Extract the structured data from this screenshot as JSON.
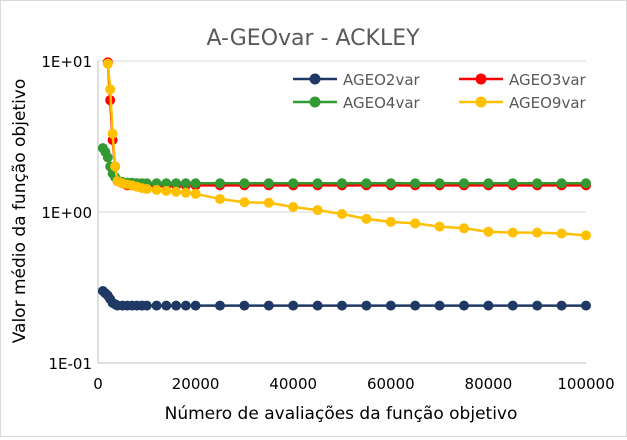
{
  "chart_data": {
    "type": "line",
    "title": "A-GEOvar - ACKLEY",
    "xlabel": "Número de avaliações da função objetivo",
    "ylabel": "Valor médio da função objetivo",
    "xlim": [
      0,
      100000
    ],
    "ylim": [
      0.1,
      10
    ],
    "yscale": "log",
    "x_ticks": [
      0,
      20000,
      40000,
      60000,
      80000,
      100000
    ],
    "x_tick_labels": [
      "0",
      "20000",
      "40000",
      "60000",
      "80000",
      "100000"
    ],
    "y_ticks": [
      0.1,
      1,
      10
    ],
    "y_tick_labels": [
      "1E-01",
      "1E+00",
      "1E+01"
    ],
    "grid": "horizontal",
    "legend": "top-right",
    "series": [
      {
        "name": "AGEO2var",
        "color": "#203864",
        "points": [
          [
            1000,
            0.3
          ],
          [
            1500,
            0.29
          ],
          [
            2000,
            0.28
          ],
          [
            2500,
            0.265
          ],
          [
            3000,
            0.25
          ],
          [
            3500,
            0.245
          ],
          [
            4000,
            0.24
          ],
          [
            5000,
            0.24
          ],
          [
            6000,
            0.24
          ],
          [
            7000,
            0.24
          ],
          [
            8000,
            0.24
          ],
          [
            9000,
            0.24
          ],
          [
            10000,
            0.24
          ],
          [
            12000,
            0.24
          ],
          [
            14000,
            0.24
          ],
          [
            16000,
            0.24
          ],
          [
            18000,
            0.24
          ],
          [
            20000,
            0.24
          ],
          [
            25000,
            0.24
          ],
          [
            30000,
            0.24
          ],
          [
            35000,
            0.24
          ],
          [
            40000,
            0.24
          ],
          [
            45000,
            0.24
          ],
          [
            50000,
            0.24
          ],
          [
            55000,
            0.24
          ],
          [
            60000,
            0.24
          ],
          [
            65000,
            0.24
          ],
          [
            70000,
            0.24
          ],
          [
            75000,
            0.24
          ],
          [
            80000,
            0.24
          ],
          [
            85000,
            0.24
          ],
          [
            90000,
            0.24
          ],
          [
            95000,
            0.24
          ],
          [
            100000,
            0.24
          ]
        ]
      },
      {
        "name": "AGEO3var",
        "color": "#ff0000",
        "points": [
          [
            2000,
            9.8
          ],
          [
            2500,
            5.5
          ],
          [
            3000,
            3.0
          ],
          [
            3500,
            2.0
          ],
          [
            4000,
            1.6
          ],
          [
            5000,
            1.55
          ],
          [
            6000,
            1.5
          ],
          [
            7000,
            1.5
          ],
          [
            8000,
            1.5
          ],
          [
            9000,
            1.5
          ],
          [
            10000,
            1.5
          ],
          [
            12000,
            1.5
          ],
          [
            14000,
            1.5
          ],
          [
            16000,
            1.5
          ],
          [
            18000,
            1.5
          ],
          [
            20000,
            1.5
          ],
          [
            25000,
            1.5
          ],
          [
            30000,
            1.5
          ],
          [
            35000,
            1.5
          ],
          [
            40000,
            1.5
          ],
          [
            45000,
            1.5
          ],
          [
            50000,
            1.5
          ],
          [
            55000,
            1.5
          ],
          [
            60000,
            1.5
          ],
          [
            65000,
            1.5
          ],
          [
            70000,
            1.5
          ],
          [
            75000,
            1.5
          ],
          [
            80000,
            1.5
          ],
          [
            85000,
            1.5
          ],
          [
            90000,
            1.5
          ],
          [
            95000,
            1.5
          ],
          [
            100000,
            1.5
          ]
        ]
      },
      {
        "name": "AGEO4var",
        "color": "#339933",
        "points": [
          [
            1000,
            2.65
          ],
          [
            1500,
            2.5
          ],
          [
            2000,
            2.3
          ],
          [
            2500,
            2.0
          ],
          [
            3000,
            1.8
          ],
          [
            3500,
            1.7
          ],
          [
            4000,
            1.62
          ],
          [
            5000,
            1.58
          ],
          [
            6000,
            1.56
          ],
          [
            7000,
            1.56
          ],
          [
            8000,
            1.55
          ],
          [
            9000,
            1.55
          ],
          [
            10000,
            1.55
          ],
          [
            12000,
            1.55
          ],
          [
            14000,
            1.55
          ],
          [
            16000,
            1.55
          ],
          [
            18000,
            1.55
          ],
          [
            20000,
            1.55
          ],
          [
            25000,
            1.55
          ],
          [
            30000,
            1.55
          ],
          [
            35000,
            1.55
          ],
          [
            40000,
            1.55
          ],
          [
            45000,
            1.55
          ],
          [
            50000,
            1.55
          ],
          [
            55000,
            1.55
          ],
          [
            60000,
            1.55
          ],
          [
            65000,
            1.55
          ],
          [
            70000,
            1.55
          ],
          [
            75000,
            1.55
          ],
          [
            80000,
            1.55
          ],
          [
            85000,
            1.55
          ],
          [
            90000,
            1.55
          ],
          [
            95000,
            1.55
          ],
          [
            100000,
            1.55
          ]
        ]
      },
      {
        "name": "AGEO9var",
        "color": "#ffc000",
        "points": [
          [
            2000,
            9.6
          ],
          [
            2500,
            6.5
          ],
          [
            3000,
            3.3
          ],
          [
            3500,
            2.0
          ],
          [
            4000,
            1.6
          ],
          [
            5000,
            1.55
          ],
          [
            6000,
            1.52
          ],
          [
            7000,
            1.5
          ],
          [
            8000,
            1.47
          ],
          [
            9000,
            1.44
          ],
          [
            10000,
            1.42
          ],
          [
            12000,
            1.4
          ],
          [
            14000,
            1.38
          ],
          [
            16000,
            1.36
          ],
          [
            18000,
            1.34
          ],
          [
            20000,
            1.32
          ],
          [
            25000,
            1.22
          ],
          [
            30000,
            1.16
          ],
          [
            35000,
            1.15
          ],
          [
            40000,
            1.08
          ],
          [
            45000,
            1.03
          ],
          [
            50000,
            0.97
          ],
          [
            55000,
            0.9
          ],
          [
            60000,
            0.86
          ],
          [
            65000,
            0.84
          ],
          [
            70000,
            0.8
          ],
          [
            75000,
            0.78
          ],
          [
            80000,
            0.74
          ],
          [
            85000,
            0.73
          ],
          [
            90000,
            0.73
          ],
          [
            95000,
            0.72
          ],
          [
            100000,
            0.7
          ]
        ]
      }
    ]
  }
}
